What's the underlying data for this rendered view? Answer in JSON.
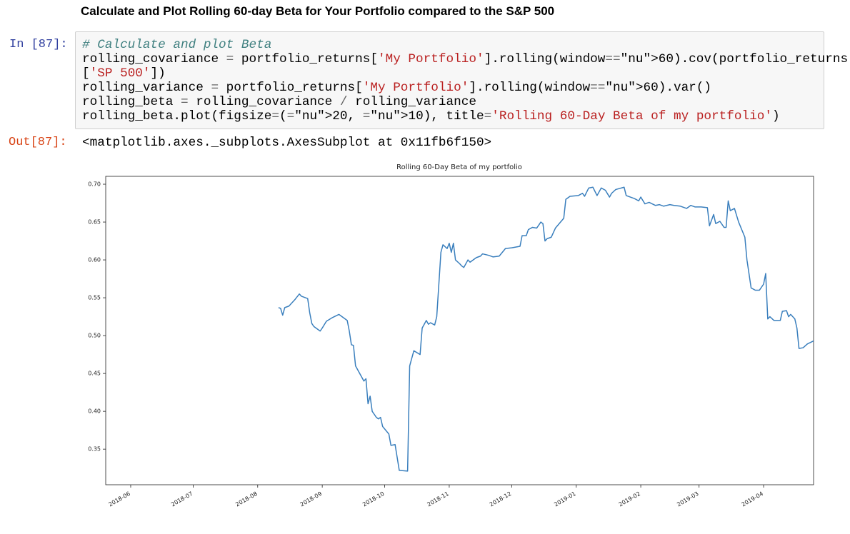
{
  "heading": "Calculate and Plot Rolling 60-day Beta for Your Portfolio compared to the S&P 500",
  "cell": {
    "in_prompt": "In [87]:",
    "code_lines": [
      "# Calculate and plot Beta",
      "rolling_covariance = portfolio_returns['My Portfolio'].rolling(window=60).cov(portfolio_returns",
      "['SP 500'])",
      "rolling_variance = portfolio_returns['My Portfolio'].rolling(window=60).var()",
      "rolling_beta = rolling_covariance / rolling_variance",
      "rolling_beta.plot(figsize=(20, 10), title='Rolling 60-Day Beta of my portfolio')"
    ],
    "out_prompt": "Out[87]:",
    "output_text": "<matplotlib.axes._subplots.AxesSubplot at 0x11fb6f150>"
  },
  "chart_data": {
    "type": "line",
    "title": "Rolling 60-Day Beta of my portfolio",
    "x": [
      "2018-08-11",
      "2018-08-12",
      "2018-08-13",
      "2018-08-14",
      "2018-08-16",
      "2018-08-19",
      "2018-08-21",
      "2018-08-22",
      "2018-08-25",
      "2018-08-26",
      "2018-08-27",
      "2018-08-28",
      "2018-08-30",
      "2018-08-31",
      "2018-09-01",
      "2018-09-03",
      "2018-09-06",
      "2018-09-09",
      "2018-09-11",
      "2018-09-13",
      "2018-09-14",
      "2018-09-15",
      "2018-09-16",
      "2018-09-17",
      "2018-09-19",
      "2018-09-21",
      "2018-09-22",
      "2018-09-23",
      "2018-09-24",
      "2018-09-25",
      "2018-09-27",
      "2018-09-28",
      "2018-09-29",
      "2018-09-30",
      "2018-10-03",
      "2018-10-04",
      "2018-10-06",
      "2018-10-08",
      "2018-10-12",
      "2018-10-13",
      "2018-10-15",
      "2018-10-18",
      "2018-10-19",
      "2018-10-21",
      "2018-10-22",
      "2018-10-23",
      "2018-10-25",
      "2018-10-26",
      "2018-10-28",
      "2018-10-29",
      "2018-10-31",
      "2018-11-01",
      "2018-11-02",
      "2018-11-03",
      "2018-11-04",
      "2018-11-06",
      "2018-11-07",
      "2018-11-08",
      "2018-11-10",
      "2018-11-11",
      "2018-11-14",
      "2018-11-16",
      "2018-11-17",
      "2018-11-20",
      "2018-11-22",
      "2018-11-25",
      "2018-11-28",
      "2018-12-01",
      "2018-12-05",
      "2018-12-06",
      "2018-12-08",
      "2018-12-09",
      "2018-12-11",
      "2018-12-13",
      "2018-12-15",
      "2018-12-16",
      "2018-12-17",
      "2018-12-18",
      "2018-12-20",
      "2018-12-22",
      "2018-12-26",
      "2018-12-27",
      "2018-12-29",
      "2019-01-02",
      "2019-01-04",
      "2019-01-05",
      "2019-01-07",
      "2019-01-09",
      "2019-01-11",
      "2019-01-13",
      "2019-01-15",
      "2019-01-17",
      "2019-01-18",
      "2019-01-20",
      "2019-01-24",
      "2019-01-25",
      "2019-01-27",
      "2019-01-29",
      "2019-01-31",
      "2019-02-01",
      "2019-02-03",
      "2019-02-05",
      "2019-02-08",
      "2019-02-10",
      "2019-02-12",
      "2019-02-15",
      "2019-02-17",
      "2019-02-20",
      "2019-02-23",
      "2019-02-25",
      "2019-02-27",
      "2019-03-02",
      "2019-03-05",
      "2019-03-06",
      "2019-03-08",
      "2019-03-09",
      "2019-03-11",
      "2019-03-13",
      "2019-03-14",
      "2019-03-15",
      "2019-03-16",
      "2019-03-18",
      "2019-03-20",
      "2019-03-23",
      "2019-03-24",
      "2019-03-26",
      "2019-03-28",
      "2019-03-30",
      "2019-04-01",
      "2019-04-02",
      "2019-04-03",
      "2019-04-04",
      "2019-04-06",
      "2019-04-09",
      "2019-04-10",
      "2019-04-12",
      "2019-04-13",
      "2019-04-14",
      "2019-04-16",
      "2019-04-17",
      "2019-04-18",
      "2019-04-20",
      "2019-04-22",
      "2019-04-25"
    ],
    "series": [
      {
        "color": "#3a7fbd",
        "values": [
          0.537,
          0.536,
          0.527,
          0.537,
          0.539,
          0.548,
          0.555,
          0.552,
          0.549,
          0.53,
          0.516,
          0.512,
          0.508,
          0.506,
          0.51,
          0.519,
          0.524,
          0.528,
          0.524,
          0.52,
          0.506,
          0.488,
          0.487,
          0.46,
          0.45,
          0.44,
          0.443,
          0.41,
          0.42,
          0.4,
          0.392,
          0.39,
          0.392,
          0.38,
          0.37,
          0.355,
          0.356,
          0.322,
          0.321,
          0.46,
          0.48,
          0.475,
          0.51,
          0.52,
          0.515,
          0.517,
          0.514,
          0.525,
          0.61,
          0.62,
          0.615,
          0.622,
          0.61,
          0.622,
          0.6,
          0.595,
          0.592,
          0.59,
          0.6,
          0.597,
          0.603,
          0.605,
          0.608,
          0.606,
          0.604,
          0.605,
          0.615,
          0.616,
          0.618,
          0.632,
          0.632,
          0.64,
          0.643,
          0.642,
          0.65,
          0.648,
          0.625,
          0.628,
          0.63,
          0.642,
          0.655,
          0.68,
          0.684,
          0.685,
          0.688,
          0.684,
          0.695,
          0.696,
          0.685,
          0.695,
          0.692,
          0.683,
          0.688,
          0.693,
          0.696,
          0.685,
          0.683,
          0.681,
          0.678,
          0.683,
          0.674,
          0.676,
          0.672,
          0.673,
          0.671,
          0.673,
          0.672,
          0.671,
          0.668,
          0.672,
          0.67,
          0.67,
          0.669,
          0.645,
          0.66,
          0.648,
          0.651,
          0.643,
          0.643,
          0.678,
          0.665,
          0.668,
          0.65,
          0.63,
          0.6,
          0.563,
          0.56,
          0.56,
          0.568,
          0.582,
          0.522,
          0.525,
          0.52,
          0.52,
          0.532,
          0.533,
          0.525,
          0.528,
          0.522,
          0.51,
          0.483,
          0.484,
          0.489,
          0.493
        ]
      }
    ],
    "xlim": [
      "2018-05-20",
      "2019-04-25"
    ],
    "xticks": [
      {
        "value": "2018-06-01",
        "label": "2018-06"
      },
      {
        "value": "2018-07-01",
        "label": "2018-07"
      },
      {
        "value": "2018-08-01",
        "label": "2018-08"
      },
      {
        "value": "2018-09-01",
        "label": "2018-09"
      },
      {
        "value": "2018-10-01",
        "label": "2018-10"
      },
      {
        "value": "2018-11-01",
        "label": "2018-11"
      },
      {
        "value": "2018-12-01",
        "label": "2018-12"
      },
      {
        "value": "2019-01-01",
        "label": "2019-01"
      },
      {
        "value": "2019-02-01",
        "label": "2019-02"
      },
      {
        "value": "2019-03-01",
        "label": "2019-03"
      },
      {
        "value": "2019-04-01",
        "label": "2019-04"
      }
    ],
    "ylim": [
      0.303,
      0.7104
    ],
    "yticks": [
      0.35,
      {
        "value": 0.4,
        "label": "0.40"
      },
      0.45,
      {
        "value": 0.5,
        "label": "0.50"
      },
      0.55,
      {
        "value": 0.6,
        "label": "0.60"
      },
      0.65,
      {
        "value": 0.7,
        "label": "0.70"
      }
    ],
    "grid": false
  }
}
